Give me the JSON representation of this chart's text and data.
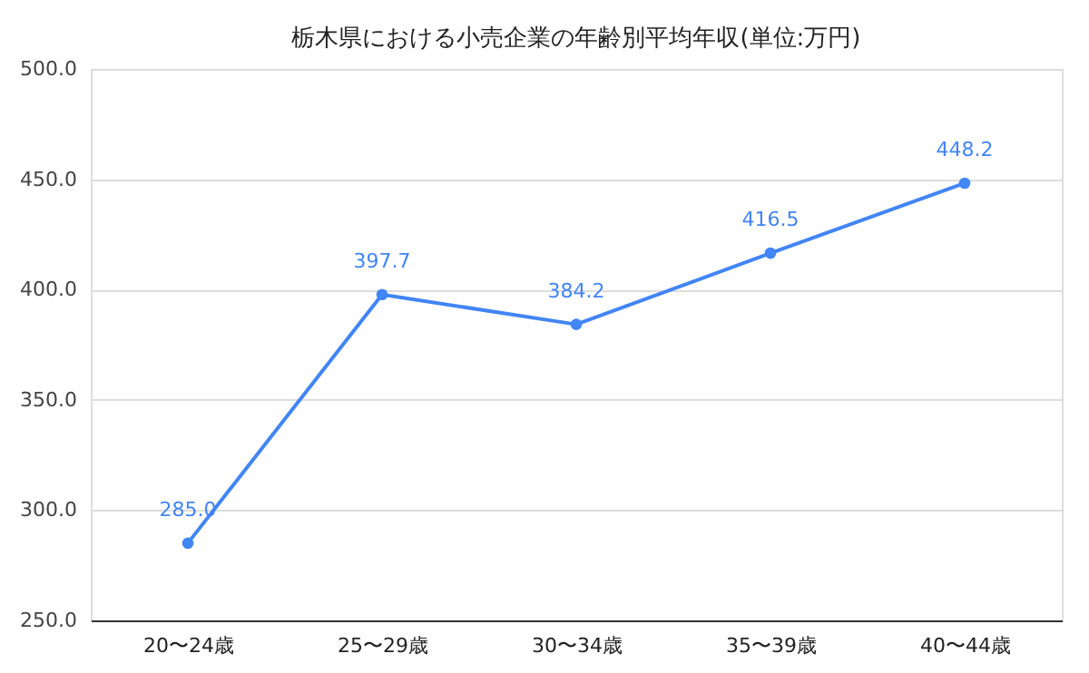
{
  "chart_data": {
    "type": "line",
    "title": "栃木県における小売企業の年齢別平均年収(単位:万円)",
    "categories": [
      "20〜24歳",
      "25〜29歳",
      "30〜34歳",
      "35〜39歳",
      "40〜44歳"
    ],
    "series": [
      {
        "color": "#4285f4",
        "values": [
          285.0,
          397.7,
          384.2,
          416.5,
          448.2
        ],
        "value_labels": [
          "285.0",
          "397.7",
          "384.2",
          "416.5",
          "448.2"
        ]
      }
    ],
    "ylim": [
      250,
      500
    ],
    "yticks": [
      {
        "value": 250,
        "label": "250.0"
      },
      {
        "value": 300,
        "label": "300.0"
      },
      {
        "value": 350,
        "label": "350.0"
      },
      {
        "value": 400,
        "label": "400.0"
      },
      {
        "value": 450,
        "label": "450.0"
      },
      {
        "value": 500,
        "label": "500.0"
      }
    ],
    "grid": "y",
    "marker": "circle",
    "line_style": "solid"
  }
}
